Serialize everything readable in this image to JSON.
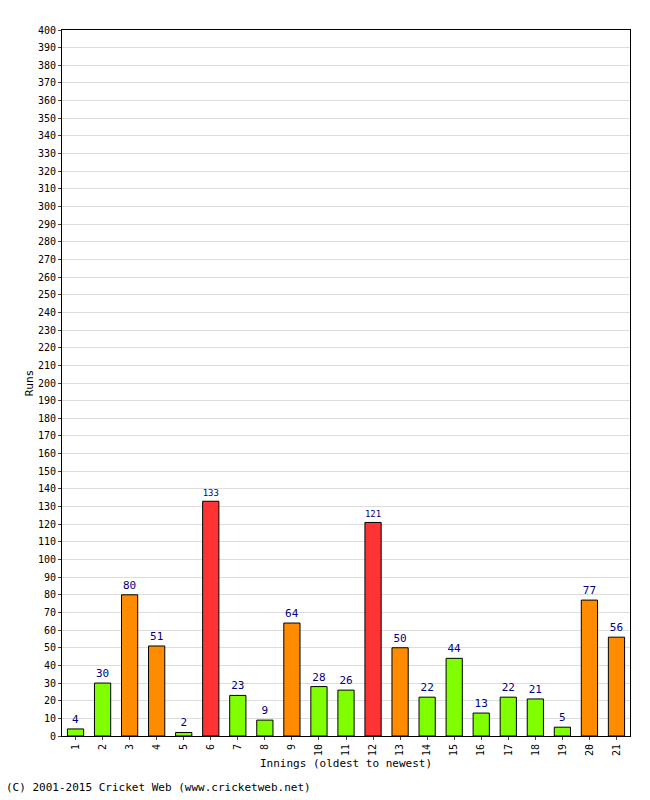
{
  "chart_data": {
    "type": "bar",
    "categories": [
      "1",
      "2",
      "3",
      "4",
      "5",
      "6",
      "7",
      "8",
      "9",
      "10",
      "11",
      "12",
      "13",
      "14",
      "15",
      "16",
      "17",
      "18",
      "19",
      "20",
      "21"
    ],
    "values": [
      4,
      30,
      80,
      51,
      2,
      133,
      23,
      9,
      64,
      28,
      26,
      121,
      50,
      22,
      44,
      13,
      22,
      21,
      5,
      77,
      56
    ],
    "colors": [
      "#80ff00",
      "#80ff00",
      "#ff8c00",
      "#ff8c00",
      "#80ff00",
      "#ff3333",
      "#80ff00",
      "#80ff00",
      "#ff8c00",
      "#80ff00",
      "#80ff00",
      "#ff3333",
      "#ff8c00",
      "#80ff00",
      "#80ff00",
      "#80ff00",
      "#80ff00",
      "#80ff00",
      "#80ff00",
      "#ff8c00",
      "#ff8c00"
    ],
    "x_label": "Innings (oldest to newest)",
    "y_label": "Runs",
    "ylim": [
      0,
      400
    ],
    "yticks": [
      0,
      10,
      20,
      30,
      40,
      50,
      60,
      70,
      80,
      90,
      100,
      110,
      120,
      130,
      140,
      150,
      160,
      170,
      180,
      190,
      200,
      210,
      220,
      230,
      240,
      250,
      260,
      270,
      280,
      290,
      300,
      310,
      320,
      330,
      340,
      350,
      360,
      370,
      380,
      390,
      400
    ],
    "grid": true,
    "data_labels": true,
    "annotations": [
      "(C) 2001-2015 Cricket Web (www.cricketweb.net)"
    ]
  }
}
